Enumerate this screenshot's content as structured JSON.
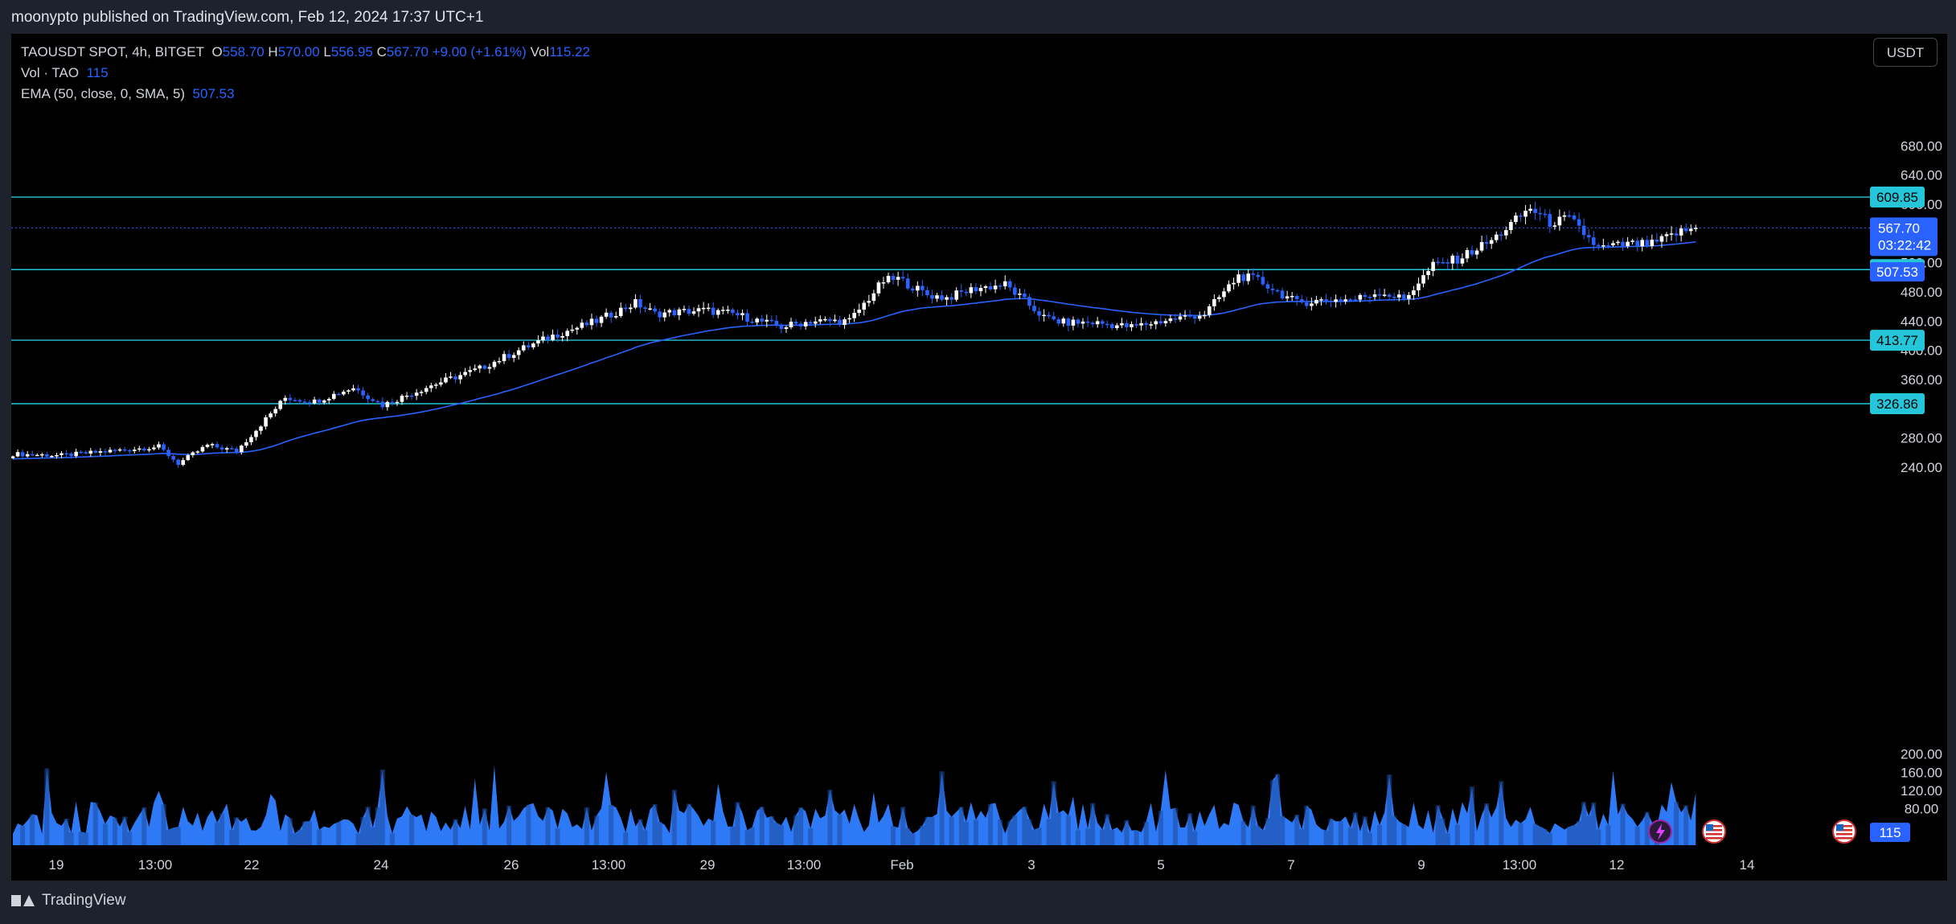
{
  "header": {
    "published": "moonypto published on TradingView.com, Feb 12, 2024 17:37 UTC+1"
  },
  "legend": {
    "symbol": "TAOUSDT SPOT, 4h, BITGET",
    "o_label": "O",
    "o_value": "558.70",
    "h_label": "H",
    "h_value": "570.00",
    "l_label": "L",
    "l_value": "556.95",
    "c_label": "C",
    "c_value": "567.70",
    "change": "+9.00 (+1.61%)",
    "vol_label": "Vol",
    "vol_value": "115.22",
    "vol_row_label": "Vol · TAO",
    "vol_row_value": "115",
    "ema_label": "EMA (50, close, 0, SMA, 5)",
    "ema_value": "507.53"
  },
  "currency_button": "USDT",
  "footer": {
    "brand": "TradingView"
  },
  "colors": {
    "background": "#000000",
    "up_candle": "#ffffff",
    "down_candle": "#2962ff",
    "ema": "#2962ff",
    "hline": "#26c6da",
    "volume_light": "#2e79f6",
    "volume_dark": "#1e4a9e",
    "price_tag": "#2962ff"
  },
  "chart_data": {
    "type": "candlestick",
    "symbol": "TAOUSDT",
    "timeframe": "4h",
    "y_ticks": [
      "240.00",
      "280.00",
      "360.00",
      "400.00",
      "440.00",
      "480.00",
      "520.00",
      "600.00",
      "640.00",
      "680.00"
    ],
    "y_range": [
      206,
      712
    ],
    "volume_ticks": [
      "80.00",
      "120.00",
      "160.00",
      "200.00"
    ],
    "x_ticks": [
      "19",
      "13:00",
      "22",
      "24",
      "26",
      "13:00",
      "29",
      "13:00",
      "Feb",
      "3",
      "5",
      "7",
      "9",
      "13:00",
      "12",
      "14"
    ],
    "horizontal_levels": [
      609.85,
      510.51,
      413.77,
      326.86
    ],
    "level_labels": [
      "609.85",
      "510.51",
      "413.77",
      "326.86"
    ],
    "last_price": 567.7,
    "last_price_label": "567.70",
    "countdown": "03:22:42",
    "ema_last_label": "507.53",
    "volume_last_label": "115",
    "close_anchors": [
      [
        0,
        258
      ],
      [
        10,
        256
      ],
      [
        20,
        262
      ],
      [
        30,
        268
      ],
      [
        34,
        245
      ],
      [
        40,
        270
      ],
      [
        46,
        262
      ],
      [
        56,
        335
      ],
      [
        62,
        330
      ],
      [
        70,
        349
      ],
      [
        76,
        325
      ],
      [
        86,
        352
      ],
      [
        96,
        375
      ],
      [
        104,
        400
      ],
      [
        111,
        420
      ],
      [
        120,
        440
      ],
      [
        128,
        465
      ],
      [
        132,
        450
      ],
      [
        142,
        455
      ],
      [
        148,
        450
      ],
      [
        158,
        432
      ],
      [
        164,
        440
      ],
      [
        172,
        440
      ],
      [
        179,
        495
      ],
      [
        182,
        498
      ],
      [
        188,
        476
      ],
      [
        192,
        472
      ],
      [
        198,
        485
      ],
      [
        204,
        490
      ],
      [
        212,
        445
      ],
      [
        216,
        438
      ],
      [
        222,
        438
      ],
      [
        230,
        432
      ],
      [
        236,
        440
      ],
      [
        245,
        450
      ],
      [
        252,
        502
      ],
      [
        256,
        496
      ],
      [
        264,
        465
      ],
      [
        270,
        469
      ],
      [
        276,
        470
      ],
      [
        281,
        480
      ],
      [
        286,
        470
      ],
      [
        292,
        516
      ],
      [
        297,
        525
      ],
      [
        304,
        550
      ],
      [
        312,
        595
      ],
      [
        316,
        575
      ],
      [
        320,
        580
      ],
      [
        323,
        560
      ],
      [
        326,
        540
      ],
      [
        332,
        545
      ],
      [
        337,
        545
      ],
      [
        342,
        560
      ],
      [
        346,
        568
      ]
    ]
  }
}
